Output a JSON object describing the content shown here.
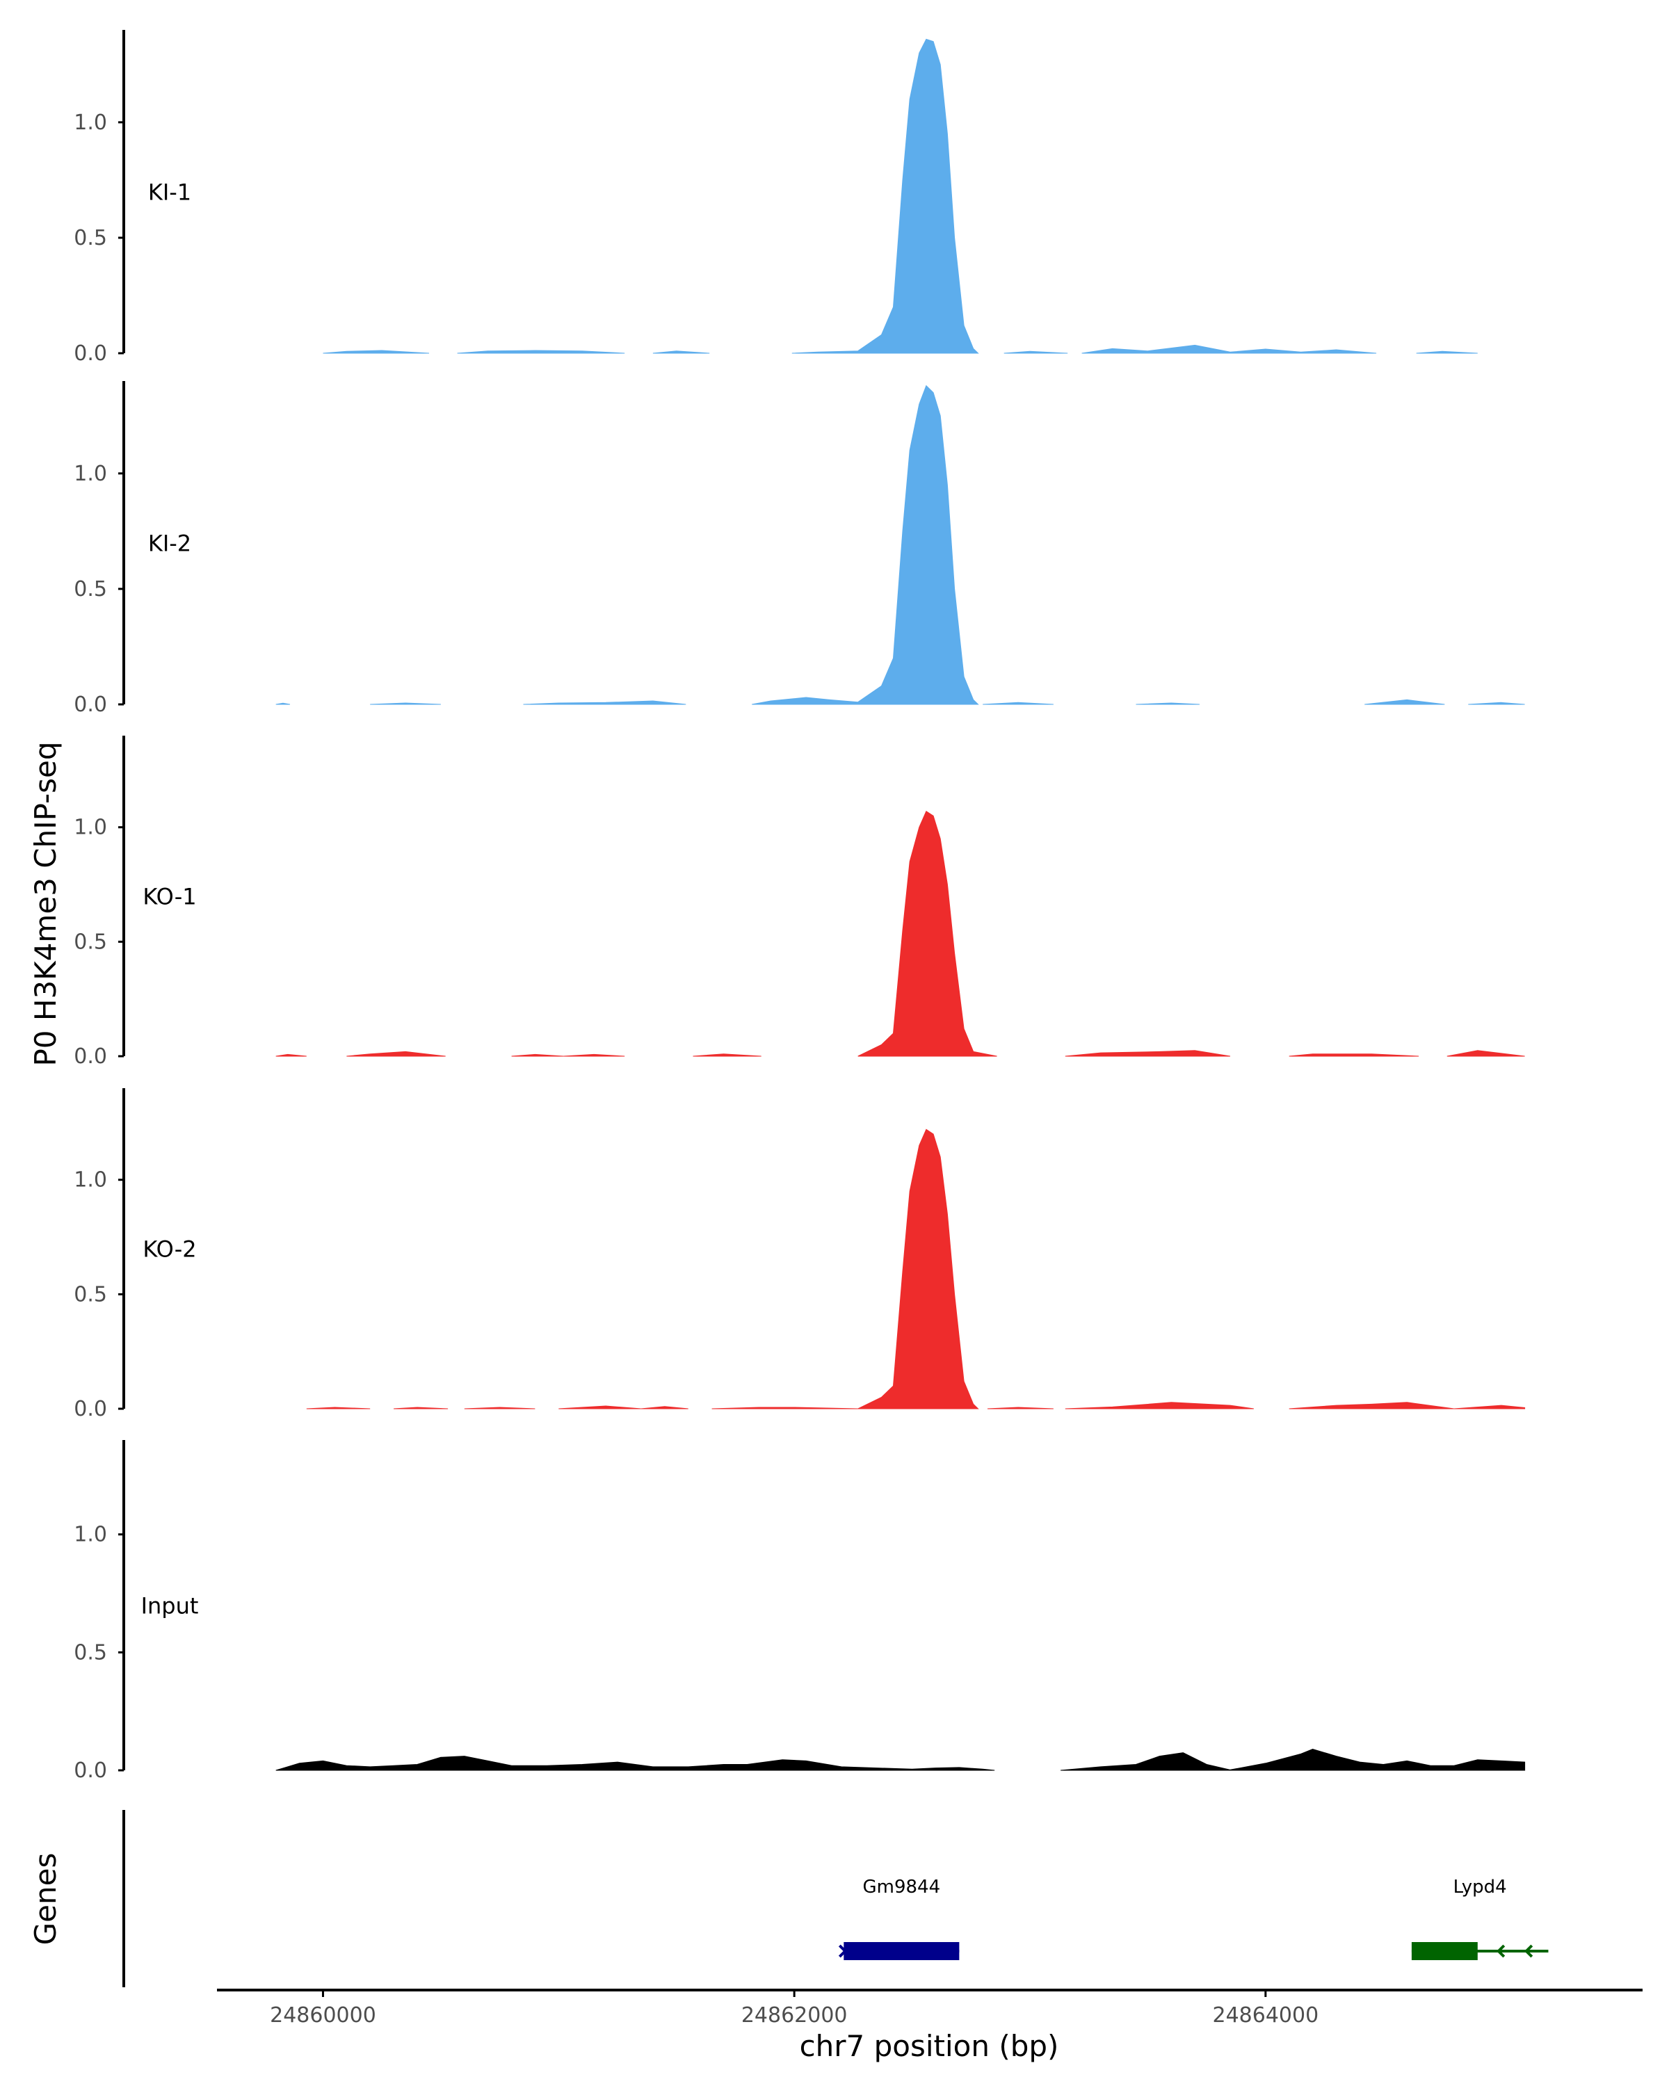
{
  "chart_data": {
    "type": "area",
    "ylabel": "P0 H3K4me3 ChIP-seq",
    "xlabel": "chr7 position (bp)",
    "genes_label": "Genes",
    "xlim": [
      24859550,
      24865600
    ],
    "ylim": [
      0,
      1.4
    ],
    "y_ticks": [
      0.0,
      0.5,
      1.0
    ],
    "y_tick_labels": [
      "0.0",
      "0.5",
      "1.0"
    ],
    "x_ticks": [
      24860000,
      24862000,
      24864000
    ],
    "x_tick_labels": [
      "24860000",
      "24862000",
      "24864000"
    ],
    "grid": false,
    "series": [
      {
        "name": "KI-1",
        "color": "#5DADEC",
        "segments": [
          {
            "x": [
              24860000,
              24860100,
              24860250,
              24860450
            ],
            "y": [
              0,
              0.008,
              0.012,
              0
            ]
          },
          {
            "x": [
              24860570,
              24860700,
              24860900,
              24861100,
              24861280
            ],
            "y": [
              0,
              0.01,
              0.012,
              0.01,
              0
            ]
          },
          {
            "x": [
              24861400,
              24861500,
              24861640
            ],
            "y": [
              0,
              0.01,
              0
            ]
          },
          {
            "x": [
              24861990,
              24862100,
              24862270,
              24862370,
              24862420,
              24862460,
              24862490,
              24862530,
              24862560,
              24862590,
              24862620,
              24862650,
              24862680,
              24862720,
              24862760,
              24862780
            ],
            "y": [
              0,
              0.005,
              0.01,
              0.08,
              0.2,
              0.75,
              1.1,
              1.3,
              1.36,
              1.35,
              1.25,
              0.95,
              0.5,
              0.12,
              0.02,
              0
            ]
          },
          {
            "x": [
              24862890,
              24863000,
              24863160
            ],
            "y": [
              0,
              0.008,
              0
            ]
          },
          {
            "x": [
              24863220,
              24863350,
              24863500,
              24863700,
              24863850,
              24864000,
              24864150,
              24864300,
              24864470
            ],
            "y": [
              0,
              0.02,
              0.01,
              0.035,
              0.005,
              0.018,
              0.005,
              0.015,
              0
            ]
          },
          {
            "x": [
              24864640,
              24864750,
              24864900
            ],
            "y": [
              0,
              0.008,
              0
            ]
          }
        ]
      },
      {
        "name": "KI-2",
        "color": "#5DADEC",
        "segments": [
          {
            "x": [
              24859800,
              24859830,
              24859860
            ],
            "y": [
              0,
              0.005,
              0
            ]
          },
          {
            "x": [
              24860200,
              24860350,
              24860500
            ],
            "y": [
              0,
              0.006,
              0
            ]
          },
          {
            "x": [
              24860850,
              24861000,
              24861200,
              24861400,
              24861540
            ],
            "y": [
              0,
              0.006,
              0.008,
              0.015,
              0
            ]
          },
          {
            "x": [
              24861820,
              24861900,
              24862050,
              24862150,
              24862270,
              24862370,
              24862420,
              24862460,
              24862490,
              24862530,
              24862560,
              24862590,
              24862620,
              24862650,
              24862680,
              24862720,
              24862760,
              24862780
            ],
            "y": [
              0,
              0.015,
              0.03,
              0.02,
              0.01,
              0.08,
              0.2,
              0.75,
              1.1,
              1.3,
              1.38,
              1.35,
              1.25,
              0.95,
              0.5,
              0.12,
              0.02,
              0
            ]
          },
          {
            "x": [
              24862800,
              24862950,
              24863100
            ],
            "y": [
              0,
              0.008,
              0
            ]
          },
          {
            "x": [
              24863450,
              24863600,
              24863720
            ],
            "y": [
              0,
              0.006,
              0
            ]
          },
          {
            "x": [
              24864420,
              24864600,
              24864760
            ],
            "y": [
              0,
              0.02,
              0
            ]
          },
          {
            "x": [
              24864860,
              24865000,
              24865100
            ],
            "y": [
              0,
              0.008,
              0
            ]
          }
        ]
      },
      {
        "name": "KO-1",
        "color": "#EE2C2C",
        "segments": [
          {
            "x": [
              24859800,
              24859850,
              24859930
            ],
            "y": [
              0,
              0.008,
              0
            ]
          },
          {
            "x": [
              24860100,
              24860200,
              24860350,
              24860520
            ],
            "y": [
              0,
              0.01,
              0.02,
              0
            ]
          },
          {
            "x": [
              24860800,
              24860900,
              24861020
            ],
            "y": [
              0,
              0.008,
              0
            ]
          },
          {
            "x": [
              24861020,
              24861150,
              24861280
            ],
            "y": [
              0,
              0.008,
              0
            ]
          },
          {
            "x": [
              24861570,
              24861700,
              24861860
            ],
            "y": [
              0,
              0.01,
              0
            ]
          },
          {
            "x": [
              24862270,
              24862370,
              24862420,
              24862460,
              24862490,
              24862530,
              24862560,
              24862590,
              24862620,
              24862650,
              24862680,
              24862720,
              24862760,
              24862860
            ],
            "y": [
              0,
              0.05,
              0.1,
              0.55,
              0.85,
              1.0,
              1.07,
              1.05,
              0.95,
              0.75,
              0.45,
              0.12,
              0.02,
              0
            ]
          },
          {
            "x": [
              24863150,
              24863300,
              24863550,
              24863700,
              24863850
            ],
            "y": [
              0,
              0.015,
              0.02,
              0.025,
              0
            ]
          },
          {
            "x": [
              24864100,
              24864200,
              24864450,
              24864650
            ],
            "y": [
              0,
              0.01,
              0.01,
              0
            ]
          },
          {
            "x": [
              24864770,
              24864900,
              24865100
            ],
            "y": [
              0,
              0.025,
              0
            ]
          }
        ]
      },
      {
        "name": "KO-2",
        "color": "#EE2C2C",
        "segments": [
          {
            "x": [
              24859930,
              24860050,
              24860200
            ],
            "y": [
              0,
              0.006,
              0
            ]
          },
          {
            "x": [
              24860300,
              24860400,
              24860530
            ],
            "y": [
              0,
              0.006,
              0
            ]
          },
          {
            "x": [
              24860600,
              24860750,
              24860900
            ],
            "y": [
              0,
              0.006,
              0
            ]
          },
          {
            "x": [
              24861000,
              24861200,
              24861350
            ],
            "y": [
              0,
              0.012,
              0
            ]
          },
          {
            "x": [
              24861350,
              24861450,
              24861550
            ],
            "y": [
              0,
              0.01,
              0
            ]
          },
          {
            "x": [
              24861650,
              24861850,
              24862000,
              24862270
            ],
            "y": [
              0,
              0.006,
              0.006,
              0
            ]
          },
          {
            "x": [
              24862270,
              24862370,
              24862420,
              24862460,
              24862490,
              24862530,
              24862560,
              24862590,
              24862620,
              24862650,
              24862680,
              24862720,
              24862760,
              24862780
            ],
            "y": [
              0,
              0.05,
              0.1,
              0.6,
              0.95,
              1.15,
              1.22,
              1.2,
              1.1,
              0.85,
              0.5,
              0.12,
              0.02,
              0
            ]
          },
          {
            "x": [
              24862820,
              24862950,
              24863100
            ],
            "y": [
              0,
              0.006,
              0
            ]
          },
          {
            "x": [
              24863150,
              24863350,
              24863600,
              24863850,
              24863950
            ],
            "y": [
              0,
              0.008,
              0.028,
              0.015,
              0
            ]
          },
          {
            "x": [
              24864100,
              24864300,
              24864450,
              24864600,
              24864800
            ],
            "y": [
              0,
              0.015,
              0.02,
              0.028,
              0
            ]
          },
          {
            "x": [
              24864800,
              24865000,
              24865100
            ],
            "y": [
              0,
              0.015,
              0.005
            ]
          }
        ]
      },
      {
        "name": "Input",
        "color": "#000000",
        "segments": [
          {
            "x": [
              24859800,
              24859900,
              24860000,
              24860100,
              24860200,
              24860300,
              24860400,
              24860500,
              24860600,
              24860700,
              24860800,
              24860950,
              24861100,
              24861250,
              24861400,
              24861550,
              24861700,
              24861800,
              24861950,
              24862050,
              24862200,
              24862350,
              24862500,
              24862600,
              24862700,
              24862800,
              24862850
            ],
            "y": [
              0,
              0.03,
              0.04,
              0.02,
              0.015,
              0.02,
              0.025,
              0.055,
              0.06,
              0.04,
              0.02,
              0.02,
              0.025,
              0.035,
              0.015,
              0.015,
              0.025,
              0.025,
              0.045,
              0.04,
              0.015,
              0.01,
              0.005,
              0.01,
              0.012,
              0.005,
              0
            ]
          },
          {
            "x": [
              24863130,
              24863300,
              24863450,
              24863550,
              24863650,
              24863750,
              24863850,
              24864000,
              24864150,
              24864200,
              24864300,
              24864400,
              24864500,
              24864600,
              24864700,
              24864800,
              24864900,
              24865000,
              24865100
            ],
            "y": [
              0,
              0.015,
              0.025,
              0.06,
              0.075,
              0.025,
              0.002,
              0.03,
              0.07,
              0.09,
              0.06,
              0.035,
              0.025,
              0.04,
              0.02,
              0.02,
              0.045,
              0.04,
              0.035
            ]
          }
        ]
      }
    ],
    "genes": [
      {
        "name": "Gm9844",
        "start": 24862210,
        "end": 24862700,
        "color": "#00008B",
        "strand": "+"
      },
      {
        "name": "Lypd4",
        "start": 24864620,
        "end": 24865200,
        "color": "#006400",
        "strand": "-",
        "thick_end": 24864900
      }
    ]
  }
}
